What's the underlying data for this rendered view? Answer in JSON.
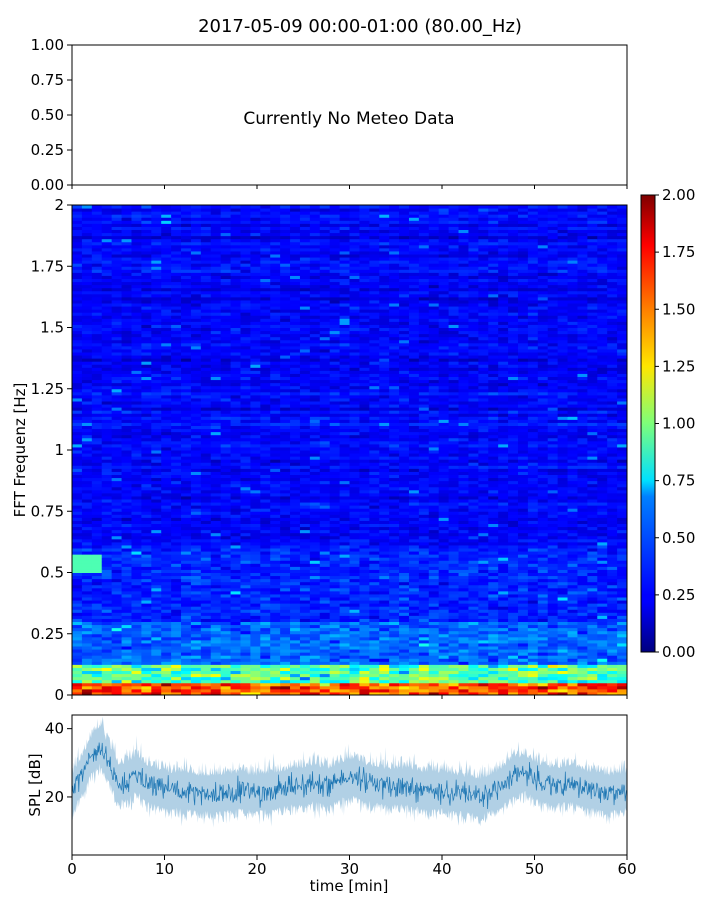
{
  "figure": {
    "title": "2017-05-09 00:00-01:00 (80.00_Hz)"
  },
  "chart_data": [
    {
      "type": "table",
      "panel": "meteo",
      "message": "Currently No Meteo Data",
      "xlim": [
        0,
        60
      ],
      "ylim": [
        0,
        1
      ],
      "yticks": [
        "0.00",
        "0.25",
        "0.50",
        "0.75",
        "1.00"
      ],
      "xtick_labels_shown": false
    },
    {
      "type": "heatmap",
      "panel": "spectrogram",
      "ylabel": "FFT Frequenz [Hz]",
      "xlim": [
        0,
        60
      ],
      "ylim": [
        0,
        2
      ],
      "yticks": [
        "0",
        "0.25",
        "0.5",
        "0.75",
        "1",
        "1.25",
        "1.5",
        "1.75",
        "2"
      ],
      "colormap": "jet",
      "colorbar": {
        "vmin": 0,
        "vmax": 2,
        "ticks": [
          "0.00",
          "0.25",
          "0.50",
          "0.75",
          "1.00",
          "1.25",
          "1.50",
          "1.75",
          "2.00"
        ]
      },
      "description_values": {
        "low_freq_band_hz": [
          0,
          0.1
        ],
        "low_freq_level": 1.6,
        "background_level": 0.25,
        "hotspot": {
          "x_min": [
            0,
            3
          ],
          "freq_hz": 0.55,
          "level": 0.9
        }
      }
    },
    {
      "type": "line",
      "panel": "spl",
      "xlabel": "time [min]",
      "ylabel": "SPL [dB]",
      "xlim": [
        0,
        60
      ],
      "ylim": [
        3,
        44
      ],
      "xticks": [
        "0",
        "10",
        "20",
        "30",
        "40",
        "50",
        "60"
      ],
      "yticks": [
        "20",
        "40"
      ],
      "color": "#1f77b4",
      "envelope": {
        "x": [
          0,
          1,
          2,
          3,
          4,
          5,
          6,
          7,
          8,
          10,
          12,
          14,
          16,
          18,
          20,
          22,
          24,
          26,
          28,
          30,
          32,
          34,
          36,
          38,
          40,
          42,
          44,
          46,
          48,
          49,
          50,
          52,
          54,
          56,
          58,
          60
        ],
        "mean": [
          21,
          26,
          32,
          35,
          30,
          24,
          25,
          27,
          24,
          22,
          22,
          21,
          21,
          22,
          21,
          22,
          23,
          24,
          23,
          26,
          24,
          23,
          23,
          22,
          22,
          21,
          20,
          22,
          26,
          27,
          25,
          23,
          24,
          22,
          21,
          22
        ]
      }
    }
  ]
}
